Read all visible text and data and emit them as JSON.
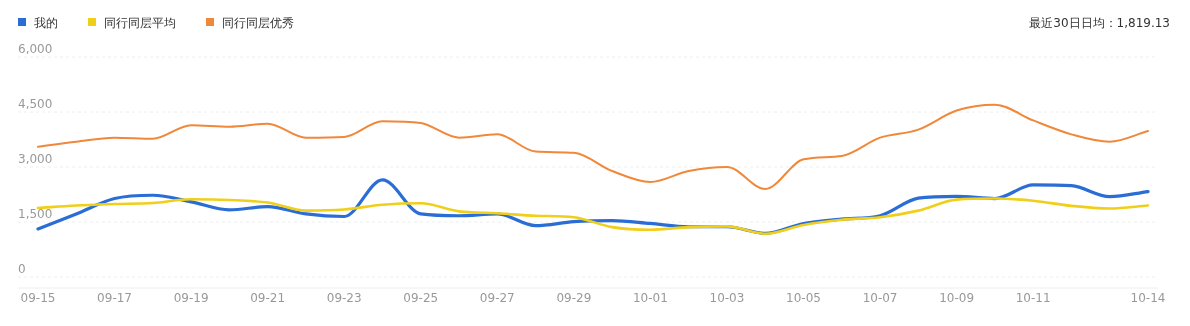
{
  "chart_data": {
    "type": "line",
    "categories": [
      "09-15",
      null,
      "09-17",
      null,
      "09-19",
      null,
      "09-21",
      null,
      "09-23",
      null,
      "09-25",
      null,
      "09-27",
      null,
      "09-29",
      null,
      "10-01",
      null,
      "10-03",
      null,
      "10-05",
      null,
      "10-07",
      null,
      "10-09",
      null,
      "10-11",
      null,
      null,
      "10-14"
    ],
    "series": [
      {
        "name": "我的",
        "color": "#2a6dd4",
        "values": [
          1310,
          1720,
          2140,
          2230,
          2050,
          1830,
          1920,
          1720,
          1650,
          2650,
          1720,
          1670,
          1720,
          1400,
          1510,
          1540,
          1460,
          1370,
          1370,
          1190,
          1460,
          1580,
          1670,
          2150,
          2200,
          2140,
          2510,
          2490,
          2190,
          2330
        ]
      },
      {
        "name": "同行同层平均",
        "color": "#f0cf1a",
        "values": [
          1880,
          1950,
          1990,
          2020,
          2120,
          2100,
          2030,
          1810,
          1840,
          1970,
          2010,
          1790,
          1740,
          1670,
          1630,
          1360,
          1290,
          1360,
          1380,
          1180,
          1420,
          1560,
          1630,
          1810,
          2110,
          2140,
          2080,
          1940,
          1870,
          1950
        ]
      },
      {
        "name": "同行同层优秀",
        "color": "#f0883a",
        "values": [
          3550,
          3690,
          3800,
          3770,
          4140,
          4100,
          4180,
          3800,
          3820,
          4250,
          4200,
          3800,
          3890,
          3420,
          3390,
          2890,
          2590,
          2890,
          3000,
          2400,
          3210,
          3300,
          3800,
          4020,
          4540,
          4700,
          4270,
          3890,
          3690,
          3980
        ]
      }
    ],
    "ylim": [
      0,
      6000
    ],
    "yticks": [
      0,
      {
        "value": 1500,
        "label": "1,500"
      },
      {
        "value": 3000,
        "label": "3,000"
      },
      {
        "value": 4500,
        "label": "4,500"
      },
      {
        "value": 6000,
        "label": "6,000"
      }
    ],
    "grid": "y",
    "legend": "top left",
    "marker": "none",
    "line_style": "solid",
    "annotations": [
      "最近30日日均：1,819.13"
    ]
  }
}
